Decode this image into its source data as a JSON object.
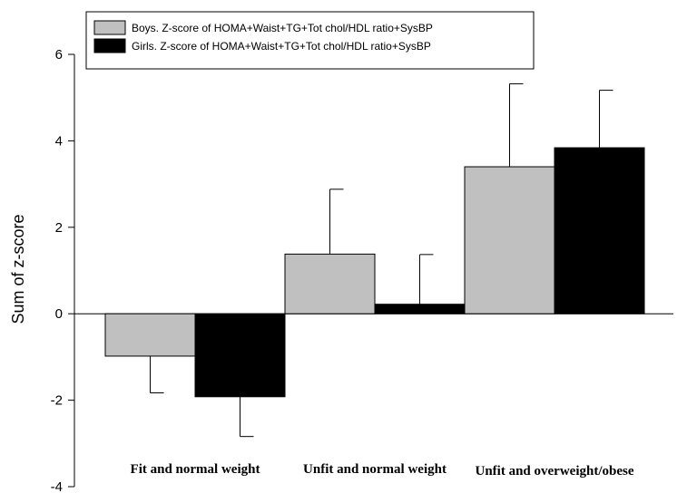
{
  "chart_data": {
    "type": "bar",
    "categories": [
      "Fit and normal weight",
      "Unfit and normal weight",
      "Unfit and overweight/obese"
    ],
    "series": [
      {
        "name": "Boys. Z-score of HOMA+Waist+TG+Tot chol/HDL ratio+SysBP",
        "values": [
          -0.98,
          1.38,
          3.4
        ],
        "error": [
          0.85,
          1.5,
          1.92
        ],
        "error_direction": "away",
        "color": "#c0c0c0"
      },
      {
        "name": "Girls. Z-score of HOMA+Waist+TG+Tot chol/HDL ratio+SysBP",
        "values": [
          -1.92,
          0.22,
          3.84
        ],
        "error": [
          0.92,
          1.15,
          1.33
        ],
        "error_direction": "away",
        "color": "#000000"
      }
    ],
    "ylabel": "Sum of z-score",
    "xlabel": "",
    "ylim": [
      -4,
      6
    ],
    "yticks": [
      "-4",
      "-2",
      "0",
      "2",
      "4",
      "6"
    ],
    "legend_position": "top-left",
    "grid": false
  }
}
